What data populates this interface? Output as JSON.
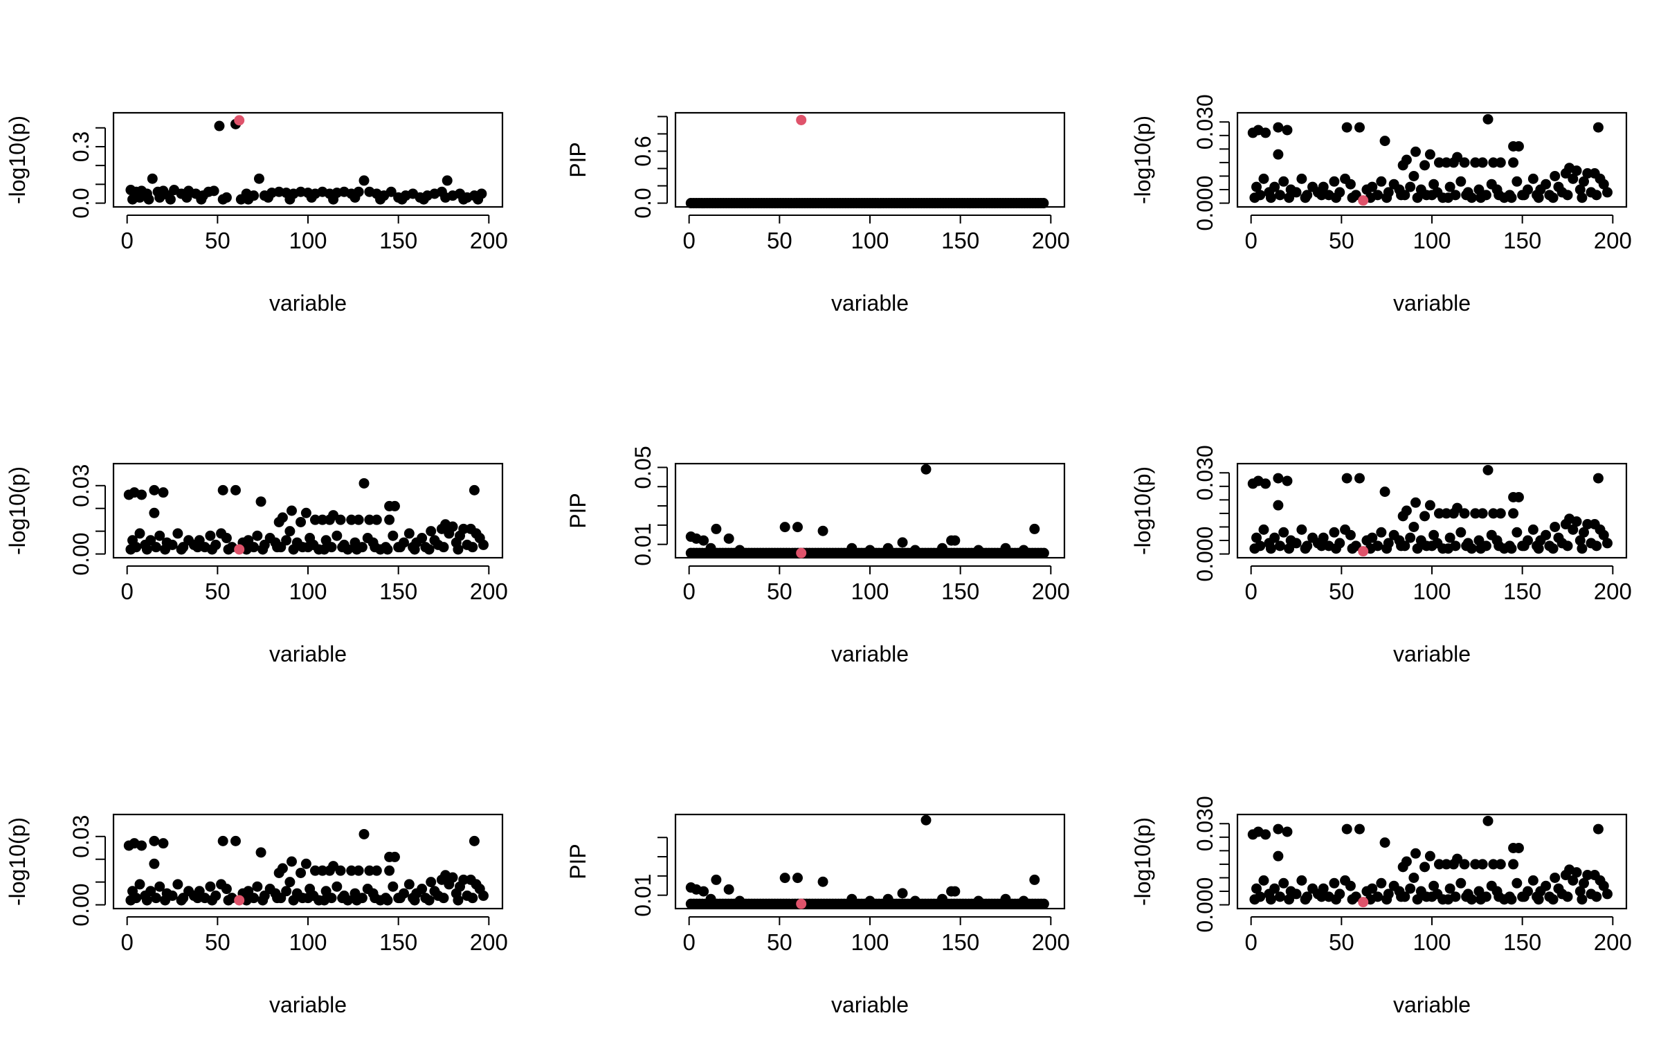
{
  "chart_data": [
    {
      "type": "scatter",
      "id": "p1",
      "ylabel": "-log10(p)",
      "xlabel": "variable",
      "xlim": [
        0,
        200
      ],
      "xticks": [
        0,
        50,
        100,
        150,
        200
      ],
      "ylim": [
        0,
        0.46
      ],
      "yticks": [
        0.0,
        0.3
      ],
      "ytick_labels": [
        "0.0",
        "0.3"
      ],
      "minor_yticks": [
        0.0,
        0.1,
        0.2,
        0.3,
        0.4
      ],
      "series": [
        {
          "name": "highlight",
          "color": "#DF536B",
          "points": [
            [
              62,
              0.44
            ]
          ]
        },
        {
          "name": "variables",
          "color": "#000000",
          "points": [
            [
              2,
              0.07
            ],
            [
              5,
              0.06
            ],
            [
              8,
              0.065
            ],
            [
              11,
              0.05
            ],
            [
              14,
              0.13
            ],
            [
              17,
              0.06
            ],
            [
              20,
              0.065
            ],
            [
              23,
              0.04
            ],
            [
              26,
              0.07
            ],
            [
              30,
              0.05
            ],
            [
              34,
              0.065
            ],
            [
              38,
              0.05
            ],
            [
              42,
              0.04
            ],
            [
              45,
              0.06
            ],
            [
              48,
              0.065
            ],
            [
              51,
              0.41
            ],
            [
              55,
              0.03
            ],
            [
              60,
              0.42
            ],
            [
              63,
              0.02
            ],
            [
              66,
              0.05
            ],
            [
              70,
              0.04
            ],
            [
              73,
              0.13
            ],
            [
              76,
              0.04
            ],
            [
              80,
              0.055
            ],
            [
              84,
              0.06
            ],
            [
              88,
              0.055
            ],
            [
              92,
              0.05
            ],
            [
              96,
              0.06
            ],
            [
              100,
              0.055
            ],
            [
              104,
              0.05
            ],
            [
              108,
              0.06
            ],
            [
              112,
              0.05
            ],
            [
              116,
              0.055
            ],
            [
              120,
              0.06
            ],
            [
              124,
              0.05
            ],
            [
              128,
              0.06
            ],
            [
              131,
              0.12
            ],
            [
              134,
              0.06
            ],
            [
              138,
              0.05
            ],
            [
              142,
              0.04
            ],
            [
              146,
              0.06
            ],
            [
              150,
              0.03
            ],
            [
              154,
              0.04
            ],
            [
              158,
              0.05
            ],
            [
              162,
              0.03
            ],
            [
              166,
              0.04
            ],
            [
              170,
              0.05
            ],
            [
              174,
              0.06
            ],
            [
              177,
              0.12
            ],
            [
              180,
              0.04
            ],
            [
              184,
              0.05
            ],
            [
              188,
              0.03
            ],
            [
              192,
              0.04
            ],
            [
              196,
              0.05
            ],
            [
              3,
              0.02
            ],
            [
              7,
              0.03
            ],
            [
              12,
              0.02
            ],
            [
              18,
              0.03
            ],
            [
              24,
              0.02
            ],
            [
              33,
              0.03
            ],
            [
              41,
              0.02
            ],
            [
              53,
              0.02
            ],
            [
              67,
              0.02
            ],
            [
              78,
              0.03
            ],
            [
              90,
              0.02
            ],
            [
              102,
              0.03
            ],
            [
              114,
              0.02
            ],
            [
              126,
              0.03
            ],
            [
              140,
              0.02
            ],
            [
              152,
              0.02
            ],
            [
              164,
              0.02
            ],
            [
              176,
              0.03
            ],
            [
              186,
              0.02
            ],
            [
              194,
              0.02
            ]
          ]
        }
      ]
    },
    {
      "type": "scatter",
      "id": "p2",
      "ylabel": "PIP",
      "xlabel": "variable",
      "xlim": [
        0,
        200
      ],
      "xticks": [
        0,
        50,
        100,
        150,
        200
      ],
      "ylim": [
        0,
        1.0
      ],
      "yticks": [
        0.0,
        0.6
      ],
      "ytick_labels": [
        "0.0",
        "0.6"
      ],
      "minor_yticks": [
        0.0,
        0.2,
        0.4,
        0.6,
        0.8,
        1.0
      ],
      "dense_baseline": {
        "y": 0.0,
        "from": 1,
        "to": 197,
        "step": 1.5
      },
      "series": [
        {
          "name": "highlight",
          "color": "#DF536B",
          "points": [
            [
              62,
              0.96
            ]
          ]
        }
      ]
    },
    {
      "type": "scatter",
      "id": "p3",
      "ylabel": "-log10(p)",
      "xlabel": "variable",
      "xlim": [
        0,
        200
      ],
      "xticks": [
        0,
        50,
        100,
        150,
        200
      ],
      "ylim": [
        0,
        0.032
      ],
      "yticks": [
        0.0,
        0.03
      ],
      "ytick_labels": [
        "0.000",
        "0.030"
      ],
      "minor_yticks": [
        0.0,
        0.005,
        0.01,
        0.015,
        0.02,
        0.025,
        0.03
      ],
      "series": [
        {
          "name": "highlight",
          "color": "#DF536B",
          "points": [
            [
              62,
              0.001
            ]
          ]
        },
        {
          "name": "variables",
          "color": "#000000",
          "group": "noise"
        }
      ]
    },
    {
      "type": "scatter",
      "id": "p4",
      "ylabel": "-log10(p)",
      "xlabel": "variable",
      "xlim": [
        0,
        200
      ],
      "xticks": [
        0,
        50,
        100,
        150,
        200
      ],
      "ylim": [
        0,
        0.038
      ],
      "yticks": [
        0.0,
        0.03
      ],
      "ytick_labels": [
        "0.00",
        "0.03"
      ],
      "minor_yticks": [
        0.0,
        0.01,
        0.02,
        0.03
      ],
      "series": [
        {
          "name": "highlight",
          "color": "#DF536B",
          "points": [
            [
              62,
              0.002
            ]
          ]
        },
        {
          "name": "variables",
          "color": "#000000",
          "group": "noise"
        }
      ]
    },
    {
      "type": "scatter",
      "id": "p5",
      "ylabel": "PIP",
      "xlabel": "variable",
      "xlim": [
        0,
        200
      ],
      "xticks": [
        0,
        50,
        100,
        150,
        200
      ],
      "ylim": [
        0.005,
        0.05
      ],
      "yticks": [
        0.01,
        0.05
      ],
      "ytick_labels": [
        "0.01",
        "0.05"
      ],
      "minor_yticks": [
        0.01,
        0.02,
        0.03,
        0.04,
        0.05
      ],
      "series": [
        {
          "name": "highlight",
          "color": "#DF536B",
          "points": [
            [
              62,
              0.0055
            ]
          ]
        },
        {
          "name": "variables",
          "color": "#000000",
          "group": "pip"
        }
      ]
    },
    {
      "type": "scatter",
      "id": "p6",
      "ylabel": "-log10(p)",
      "xlabel": "variable",
      "xlim": [
        0,
        200
      ],
      "xticks": [
        0,
        50,
        100,
        150,
        200
      ],
      "ylim": [
        0,
        0.032
      ],
      "yticks": [
        0.0,
        0.03
      ],
      "ytick_labels": [
        "0.000",
        "0.030"
      ],
      "minor_yticks": [
        0.0,
        0.005,
        0.01,
        0.015,
        0.02,
        0.025,
        0.03
      ],
      "series": [
        {
          "name": "highlight",
          "color": "#DF536B",
          "points": [
            [
              62,
              0.001
            ]
          ]
        },
        {
          "name": "variables",
          "color": "#000000",
          "group": "noise"
        }
      ]
    },
    {
      "type": "scatter",
      "id": "p7",
      "ylabel": "-log10(p)",
      "xlabel": "variable",
      "xlim": [
        0,
        200
      ],
      "xticks": [
        0,
        50,
        100,
        150,
        200
      ],
      "ylim": [
        0,
        0.038
      ],
      "yticks": [
        0.0,
        0.03
      ],
      "ytick_labels": [
        "0.00",
        "0.03"
      ],
      "minor_yticks": [
        0.0,
        0.01,
        0.02,
        0.03
      ],
      "series": [
        {
          "name": "highlight",
          "color": "#DF536B",
          "points": [
            [
              62,
              0.002
            ]
          ]
        },
        {
          "name": "variables",
          "color": "#000000",
          "group": "noise"
        }
      ]
    },
    {
      "type": "scatter",
      "id": "p8",
      "ylabel": "PIP",
      "xlabel": "variable",
      "xlim": [
        0,
        200
      ],
      "xticks": [
        0,
        50,
        100,
        150,
        200
      ],
      "ylim": [
        0.005,
        0.05
      ],
      "yticks": [
        0.01
      ],
      "ytick_labels": [
        "0.01"
      ],
      "minor_yticks": [
        0.01,
        0.02,
        0.03,
        0.04
      ],
      "series": [
        {
          "name": "highlight",
          "color": "#DF536B",
          "points": [
            [
              62,
              0.0055
            ]
          ]
        },
        {
          "name": "variables",
          "color": "#000000",
          "group": "pip"
        }
      ]
    },
    {
      "type": "scatter",
      "id": "p9",
      "ylabel": "-log10(p)",
      "xlabel": "variable",
      "xlim": [
        0,
        200
      ],
      "xticks": [
        0,
        50,
        100,
        150,
        200
      ],
      "ylim": [
        0,
        0.032
      ],
      "yticks": [
        0.0,
        0.03
      ],
      "ytick_labels": [
        "0.000",
        "0.030"
      ],
      "minor_yticks": [
        0.0,
        0.005,
        0.01,
        0.015,
        0.02,
        0.025,
        0.03
      ],
      "series": [
        {
          "name": "highlight",
          "color": "#DF536B",
          "points": [
            [
              62,
              0.001
            ]
          ]
        },
        {
          "name": "variables",
          "color": "#000000",
          "group": "noise"
        }
      ]
    }
  ],
  "point_groups": {
    "noise": [
      [
        1,
        0.026
      ],
      [
        4,
        0.027
      ],
      [
        8,
        0.026
      ],
      [
        15,
        0.028
      ],
      [
        20,
        0.027
      ],
      [
        53,
        0.028
      ],
      [
        60,
        0.028
      ],
      [
        74,
        0.023
      ],
      [
        131,
        0.031
      ],
      [
        192,
        0.028
      ],
      [
        15,
        0.018
      ],
      [
        91,
        0.019
      ],
      [
        99,
        0.018
      ],
      [
        86,
        0.016
      ],
      [
        114,
        0.017
      ],
      [
        145,
        0.021
      ],
      [
        148,
        0.021
      ],
      [
        176,
        0.013
      ],
      [
        84,
        0.014
      ],
      [
        96,
        0.014
      ],
      [
        104,
        0.015
      ],
      [
        108,
        0.015
      ],
      [
        112,
        0.015
      ],
      [
        118,
        0.015
      ],
      [
        124,
        0.015
      ],
      [
        128,
        0.015
      ],
      [
        134,
        0.015
      ],
      [
        138,
        0.015
      ],
      [
        145,
        0.015
      ],
      [
        2,
        0.002
      ],
      [
        5,
        0.003
      ],
      [
        7,
        0.009
      ],
      [
        10,
        0.004
      ],
      [
        13,
        0.006
      ],
      [
        16,
        0.003
      ],
      [
        18,
        0.008
      ],
      [
        22,
        0.005
      ],
      [
        25,
        0.004
      ],
      [
        28,
        0.009
      ],
      [
        31,
        0.003
      ],
      [
        34,
        0.006
      ],
      [
        37,
        0.004
      ],
      [
        40,
        0.006
      ],
      [
        43,
        0.003
      ],
      [
        46,
        0.008
      ],
      [
        49,
        0.004
      ],
      [
        52,
        0.009
      ],
      [
        55,
        0.007
      ],
      [
        58,
        0.003
      ],
      [
        64,
        0.005
      ],
      [
        67,
        0.006
      ],
      [
        70,
        0.003
      ],
      [
        72,
        0.008
      ],
      [
        76,
        0.004
      ],
      [
        79,
        0.007
      ],
      [
        82,
        0.005
      ],
      [
        85,
        0.003
      ],
      [
        88,
        0.006
      ],
      [
        90,
        0.01
      ],
      [
        94,
        0.005
      ],
      [
        97,
        0.003
      ],
      [
        101,
        0.007
      ],
      [
        103,
        0.004
      ],
      [
        106,
        0.002
      ],
      [
        110,
        0.006
      ],
      [
        113,
        0.003
      ],
      [
        116,
        0.008
      ],
      [
        120,
        0.004
      ],
      [
        122,
        0.002
      ],
      [
        126,
        0.005
      ],
      [
        130,
        0.003
      ],
      [
        133,
        0.007
      ],
      [
        136,
        0.005
      ],
      [
        140,
        0.002
      ],
      [
        143,
        0.003
      ],
      [
        147,
        0.008
      ],
      [
        150,
        0.003
      ],
      [
        153,
        0.005
      ],
      [
        156,
        0.009
      ],
      [
        158,
        0.003
      ],
      [
        160,
        0.005
      ],
      [
        163,
        0.007
      ],
      [
        165,
        0.003
      ],
      [
        168,
        0.01
      ],
      [
        170,
        0.006
      ],
      [
        172,
        0.004
      ],
      [
        174,
        0.011
      ],
      [
        178,
        0.009
      ],
      [
        180,
        0.012
      ],
      [
        182,
        0.005
      ],
      [
        184,
        0.008
      ],
      [
        186,
        0.011
      ],
      [
        188,
        0.004
      ],
      [
        190,
        0.011
      ],
      [
        193,
        0.009
      ],
      [
        195,
        0.007
      ],
      [
        197,
        0.004
      ],
      [
        3,
        0.006
      ],
      [
        11,
        0.002
      ],
      [
        21,
        0.002
      ],
      [
        30,
        0.002
      ],
      [
        39,
        0.003
      ],
      [
        47,
        0.002
      ],
      [
        56,
        0.002
      ],
      [
        66,
        0.002
      ],
      [
        75,
        0.002
      ],
      [
        83,
        0.003
      ],
      [
        92,
        0.002
      ],
      [
        100,
        0.003
      ],
      [
        109,
        0.002
      ],
      [
        119,
        0.003
      ],
      [
        127,
        0.002
      ],
      [
        137,
        0.003
      ],
      [
        144,
        0.002
      ],
      [
        151,
        0.003
      ],
      [
        159,
        0.002
      ],
      [
        167,
        0.002
      ],
      [
        175,
        0.003
      ],
      [
        183,
        0.002
      ],
      [
        191,
        0.003
      ]
    ],
    "pip": [
      [
        1,
        0.014
      ],
      [
        4,
        0.013
      ],
      [
        8,
        0.012
      ],
      [
        15,
        0.018
      ],
      [
        22,
        0.013
      ],
      [
        53,
        0.019
      ],
      [
        60,
        0.019
      ],
      [
        74,
        0.017
      ],
      [
        131,
        0.049
      ],
      [
        147,
        0.012
      ],
      [
        145,
        0.012
      ],
      [
        118,
        0.011
      ],
      [
        191,
        0.018
      ],
      [
        12,
        0.008
      ],
      [
        28,
        0.007
      ],
      [
        90,
        0.008
      ],
      [
        100,
        0.007
      ],
      [
        110,
        0.008
      ],
      [
        125,
        0.007
      ],
      [
        140,
        0.008
      ],
      [
        160,
        0.007
      ],
      [
        175,
        0.008
      ],
      [
        185,
        0.007
      ]
    ]
  }
}
